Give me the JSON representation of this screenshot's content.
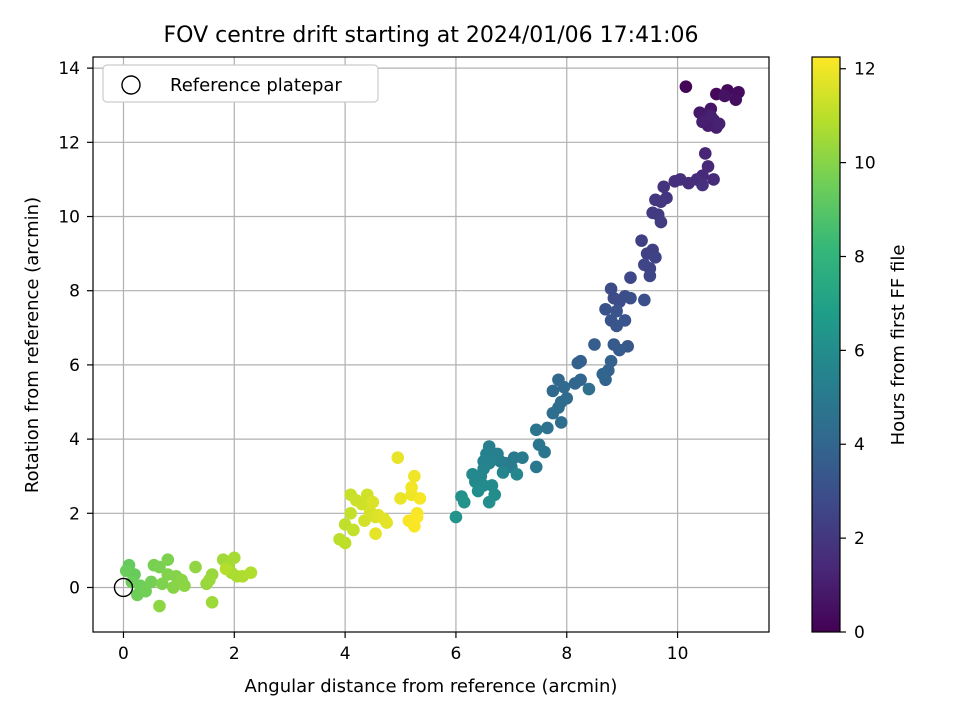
{
  "chart_data": {
    "type": "scatter",
    "title": "FOV centre drift starting at 2024/01/06 17:41:06",
    "xlabel": "Angular distance from reference (arcmin)",
    "ylabel": "Rotation from reference (arcmin)",
    "xlim": [
      -0.55,
      11.65
    ],
    "ylim": [
      -1.2,
      14.3
    ],
    "xticks": [
      0,
      2,
      4,
      6,
      8,
      10
    ],
    "yticks": [
      0,
      2,
      4,
      6,
      8,
      10,
      12,
      14
    ],
    "grid": true,
    "legend": {
      "placement": "top-left",
      "entries": [
        "Reference platepar"
      ]
    },
    "reference_point": {
      "x": 0,
      "y": 0
    },
    "colorbar": {
      "label": "Hours from first FF file",
      "range": [
        0,
        12.25
      ],
      "ticks": [
        0,
        2,
        4,
        6,
        8,
        10,
        12
      ],
      "colormap": "viridis"
    },
    "colormap_stops": [
      "#440154",
      "#482878",
      "#3e4989",
      "#31688e",
      "#26828e",
      "#1f9e89",
      "#35b779",
      "#6ece58",
      "#b5de2b",
      "#fde725"
    ],
    "points": [
      {
        "x": 10.15,
        "y": 13.5,
        "t": 0.1
      },
      {
        "x": 10.7,
        "y": 13.3,
        "t": 0.2
      },
      {
        "x": 10.9,
        "y": 13.4,
        "t": 0.3
      },
      {
        "x": 11.1,
        "y": 13.35,
        "t": 0.4
      },
      {
        "x": 11.05,
        "y": 13.15,
        "t": 0.5
      },
      {
        "x": 10.85,
        "y": 13.25,
        "t": 0.6
      },
      {
        "x": 10.6,
        "y": 12.9,
        "t": 0.7
      },
      {
        "x": 10.4,
        "y": 12.8,
        "t": 0.8
      },
      {
        "x": 10.5,
        "y": 12.75,
        "t": 0.85
      },
      {
        "x": 10.65,
        "y": 12.6,
        "t": 0.9
      },
      {
        "x": 10.55,
        "y": 12.45,
        "t": 0.95
      },
      {
        "x": 10.7,
        "y": 12.4,
        "t": 1.0
      },
      {
        "x": 10.45,
        "y": 12.55,
        "t": 1.05
      },
      {
        "x": 10.6,
        "y": 12.7,
        "t": 1.1
      },
      {
        "x": 10.75,
        "y": 12.5,
        "t": 1.15
      },
      {
        "x": 10.5,
        "y": 11.7,
        "t": 1.3
      },
      {
        "x": 10.55,
        "y": 11.35,
        "t": 1.4
      },
      {
        "x": 10.45,
        "y": 11.1,
        "t": 1.45
      },
      {
        "x": 10.65,
        "y": 11.0,
        "t": 1.5
      },
      {
        "x": 10.35,
        "y": 11.0,
        "t": 1.55
      },
      {
        "x": 10.2,
        "y": 10.9,
        "t": 1.6
      },
      {
        "x": 10.05,
        "y": 11.0,
        "t": 1.65
      },
      {
        "x": 9.95,
        "y": 10.95,
        "t": 1.7
      },
      {
        "x": 10.45,
        "y": 10.85,
        "t": 1.75
      },
      {
        "x": 9.75,
        "y": 10.8,
        "t": 1.85
      },
      {
        "x": 9.8,
        "y": 10.5,
        "t": 1.9
      },
      {
        "x": 9.7,
        "y": 10.4,
        "t": 1.95
      },
      {
        "x": 9.6,
        "y": 10.45,
        "t": 2.0
      },
      {
        "x": 9.65,
        "y": 10.05,
        "t": 2.1
      },
      {
        "x": 9.55,
        "y": 10.1,
        "t": 2.15
      },
      {
        "x": 9.7,
        "y": 9.85,
        "t": 2.2
      },
      {
        "x": 9.35,
        "y": 9.35,
        "t": 2.3
      },
      {
        "x": 9.55,
        "y": 9.1,
        "t": 2.35
      },
      {
        "x": 9.45,
        "y": 9.0,
        "t": 2.4
      },
      {
        "x": 9.6,
        "y": 8.9,
        "t": 2.45
      },
      {
        "x": 9.5,
        "y": 8.6,
        "t": 2.5
      },
      {
        "x": 9.4,
        "y": 8.7,
        "t": 2.55
      },
      {
        "x": 9.5,
        "y": 8.4,
        "t": 2.6
      },
      {
        "x": 9.15,
        "y": 8.35,
        "t": 2.7
      },
      {
        "x": 8.8,
        "y": 8.05,
        "t": 2.8
      },
      {
        "x": 8.85,
        "y": 7.8,
        "t": 2.85
      },
      {
        "x": 8.95,
        "y": 7.7,
        "t": 2.9
      },
      {
        "x": 9.05,
        "y": 7.85,
        "t": 2.95
      },
      {
        "x": 9.15,
        "y": 7.8,
        "t": 3.0
      },
      {
        "x": 9.4,
        "y": 7.75,
        "t": 3.05
      },
      {
        "x": 8.7,
        "y": 7.5,
        "t": 3.1
      },
      {
        "x": 8.9,
        "y": 7.45,
        "t": 3.15
      },
      {
        "x": 8.8,
        "y": 7.2,
        "t": 3.2
      },
      {
        "x": 9.05,
        "y": 7.2,
        "t": 3.25
      },
      {
        "x": 8.9,
        "y": 7.05,
        "t": 3.3
      },
      {
        "x": 9.1,
        "y": 6.5,
        "t": 3.4
      },
      {
        "x": 8.85,
        "y": 6.55,
        "t": 3.45
      },
      {
        "x": 8.95,
        "y": 6.4,
        "t": 3.5
      },
      {
        "x": 8.5,
        "y": 6.55,
        "t": 3.6
      },
      {
        "x": 8.25,
        "y": 6.1,
        "t": 3.7
      },
      {
        "x": 8.2,
        "y": 6.05,
        "t": 3.75
      },
      {
        "x": 8.8,
        "y": 6.1,
        "t": 3.8
      },
      {
        "x": 8.75,
        "y": 5.85,
        "t": 3.85
      },
      {
        "x": 8.7,
        "y": 5.6,
        "t": 3.9
      },
      {
        "x": 8.65,
        "y": 5.75,
        "t": 3.95
      },
      {
        "x": 8.25,
        "y": 5.6,
        "t": 4.0
      },
      {
        "x": 8.15,
        "y": 5.5,
        "t": 4.05
      },
      {
        "x": 7.85,
        "y": 5.6,
        "t": 4.1
      },
      {
        "x": 7.75,
        "y": 5.3,
        "t": 4.15
      },
      {
        "x": 7.95,
        "y": 5.4,
        "t": 4.2
      },
      {
        "x": 8.0,
        "y": 5.1,
        "t": 4.25
      },
      {
        "x": 7.9,
        "y": 5.0,
        "t": 4.3
      },
      {
        "x": 7.85,
        "y": 4.85,
        "t": 4.35
      },
      {
        "x": 7.75,
        "y": 4.7,
        "t": 4.4
      },
      {
        "x": 7.9,
        "y": 4.45,
        "t": 4.45
      },
      {
        "x": 8.4,
        "y": 5.35,
        "t": 4.5
      },
      {
        "x": 7.65,
        "y": 4.3,
        "t": 4.6
      },
      {
        "x": 7.45,
        "y": 4.25,
        "t": 4.7
      },
      {
        "x": 7.5,
        "y": 3.85,
        "t": 4.75
      },
      {
        "x": 7.6,
        "y": 3.65,
        "t": 4.8
      },
      {
        "x": 7.45,
        "y": 3.25,
        "t": 4.9
      },
      {
        "x": 7.2,
        "y": 3.5,
        "t": 5.0
      },
      {
        "x": 7.05,
        "y": 3.5,
        "t": 5.05
      },
      {
        "x": 7.0,
        "y": 3.25,
        "t": 5.1
      },
      {
        "x": 6.9,
        "y": 3.35,
        "t": 5.15
      },
      {
        "x": 6.8,
        "y": 3.4,
        "t": 5.2
      },
      {
        "x": 6.75,
        "y": 3.6,
        "t": 5.25
      },
      {
        "x": 6.6,
        "y": 3.8,
        "t": 5.3
      },
      {
        "x": 6.7,
        "y": 3.55,
        "t": 5.35
      },
      {
        "x": 6.55,
        "y": 3.6,
        "t": 5.4
      },
      {
        "x": 6.5,
        "y": 3.4,
        "t": 5.45
      },
      {
        "x": 6.6,
        "y": 3.35,
        "t": 5.5
      },
      {
        "x": 6.5,
        "y": 3.2,
        "t": 5.55
      },
      {
        "x": 6.85,
        "y": 3.1,
        "t": 5.6
      },
      {
        "x": 7.1,
        "y": 3.05,
        "t": 5.65
      },
      {
        "x": 6.45,
        "y": 3.0,
        "t": 5.7
      },
      {
        "x": 6.3,
        "y": 3.05,
        "t": 5.75
      },
      {
        "x": 6.35,
        "y": 2.85,
        "t": 5.8
      },
      {
        "x": 6.5,
        "y": 2.75,
        "t": 5.85
      },
      {
        "x": 6.65,
        "y": 2.75,
        "t": 5.9
      },
      {
        "x": 6.4,
        "y": 2.6,
        "t": 5.95
      },
      {
        "x": 6.7,
        "y": 2.5,
        "t": 6.0
      },
      {
        "x": 6.6,
        "y": 2.3,
        "t": 6.05
      },
      {
        "x": 6.1,
        "y": 2.45,
        "t": 6.15
      },
      {
        "x": 6.15,
        "y": 2.3,
        "t": 6.2
      },
      {
        "x": 6.0,
        "y": 1.9,
        "t": 6.3
      },
      {
        "x": 0.1,
        "y": 0.6,
        "t": 9.3
      },
      {
        "x": 0.2,
        "y": 0.35,
        "t": 9.35
      },
      {
        "x": 0.05,
        "y": 0.45,
        "t": 9.4
      },
      {
        "x": 0.15,
        "y": 0.15,
        "t": 9.45
      },
      {
        "x": 0.3,
        "y": 0.05,
        "t": 9.5
      },
      {
        "x": 0.25,
        "y": -0.2,
        "t": 9.55
      },
      {
        "x": 0.4,
        "y": -0.1,
        "t": 9.6
      },
      {
        "x": 0.5,
        "y": 0.15,
        "t": 9.65
      },
      {
        "x": 0.55,
        "y": 0.6,
        "t": 9.7
      },
      {
        "x": 0.65,
        "y": 0.55,
        "t": 9.75
      },
      {
        "x": 0.8,
        "y": 0.75,
        "t": 9.8
      },
      {
        "x": 0.7,
        "y": 0.1,
        "t": 9.85
      },
      {
        "x": 0.8,
        "y": 0.35,
        "t": 9.9
      },
      {
        "x": 0.95,
        "y": 0.3,
        "t": 9.95
      },
      {
        "x": 0.9,
        "y": 0.0,
        "t": 10.0
      },
      {
        "x": 1.05,
        "y": 0.2,
        "t": 10.05
      },
      {
        "x": 1.1,
        "y": 0.05,
        "t": 10.1
      },
      {
        "x": 0.65,
        "y": -0.5,
        "t": 10.15
      },
      {
        "x": 1.3,
        "y": 0.55,
        "t": 10.2
      },
      {
        "x": 1.5,
        "y": 0.1,
        "t": 10.3
      },
      {
        "x": 1.6,
        "y": 0.35,
        "t": 10.35
      },
      {
        "x": 1.55,
        "y": 0.2,
        "t": 10.4
      },
      {
        "x": 1.6,
        "y": -0.4,
        "t": 10.45
      },
      {
        "x": 1.8,
        "y": 0.75,
        "t": 10.5
      },
      {
        "x": 1.9,
        "y": 0.6,
        "t": 10.55
      },
      {
        "x": 2.0,
        "y": 0.8,
        "t": 10.6
      },
      {
        "x": 1.95,
        "y": 0.4,
        "t": 10.65
      },
      {
        "x": 2.05,
        "y": 0.3,
        "t": 10.7
      },
      {
        "x": 2.15,
        "y": 0.3,
        "t": 10.75
      },
      {
        "x": 2.3,
        "y": 0.4,
        "t": 10.8
      },
      {
        "x": 1.85,
        "y": 0.5,
        "t": 10.85
      },
      {
        "x": 3.9,
        "y": 1.3,
        "t": 11.0
      },
      {
        "x": 4.0,
        "y": 1.2,
        "t": 11.05
      },
      {
        "x": 4.0,
        "y": 1.7,
        "t": 11.1
      },
      {
        "x": 4.15,
        "y": 1.55,
        "t": 11.15
      },
      {
        "x": 4.1,
        "y": 2.0,
        "t": 11.2
      },
      {
        "x": 4.1,
        "y": 2.5,
        "t": 11.25
      },
      {
        "x": 4.2,
        "y": 2.35,
        "t": 11.3
      },
      {
        "x": 4.3,
        "y": 2.25,
        "t": 11.35
      },
      {
        "x": 4.4,
        "y": 2.5,
        "t": 11.4
      },
      {
        "x": 4.35,
        "y": 1.8,
        "t": 11.45
      },
      {
        "x": 4.45,
        "y": 2.05,
        "t": 11.5
      },
      {
        "x": 4.55,
        "y": 1.9,
        "t": 11.55
      },
      {
        "x": 4.5,
        "y": 2.3,
        "t": 11.6
      },
      {
        "x": 4.6,
        "y": 1.95,
        "t": 11.65
      },
      {
        "x": 4.7,
        "y": 1.85,
        "t": 11.7
      },
      {
        "x": 4.75,
        "y": 1.75,
        "t": 11.75
      },
      {
        "x": 4.55,
        "y": 1.45,
        "t": 11.8
      },
      {
        "x": 4.95,
        "y": 3.5,
        "t": 11.85
      },
      {
        "x": 5.0,
        "y": 2.4,
        "t": 11.9
      },
      {
        "x": 5.2,
        "y": 2.5,
        "t": 11.95
      },
      {
        "x": 5.25,
        "y": 3.0,
        "t": 12.0
      },
      {
        "x": 5.2,
        "y": 2.7,
        "t": 12.05
      },
      {
        "x": 5.35,
        "y": 2.4,
        "t": 12.1
      },
      {
        "x": 5.3,
        "y": 2.0,
        "t": 12.12
      },
      {
        "x": 5.15,
        "y": 1.8,
        "t": 12.15
      },
      {
        "x": 5.25,
        "y": 1.65,
        "t": 12.18
      },
      {
        "x": 5.3,
        "y": 1.9,
        "t": 12.2
      }
    ]
  }
}
